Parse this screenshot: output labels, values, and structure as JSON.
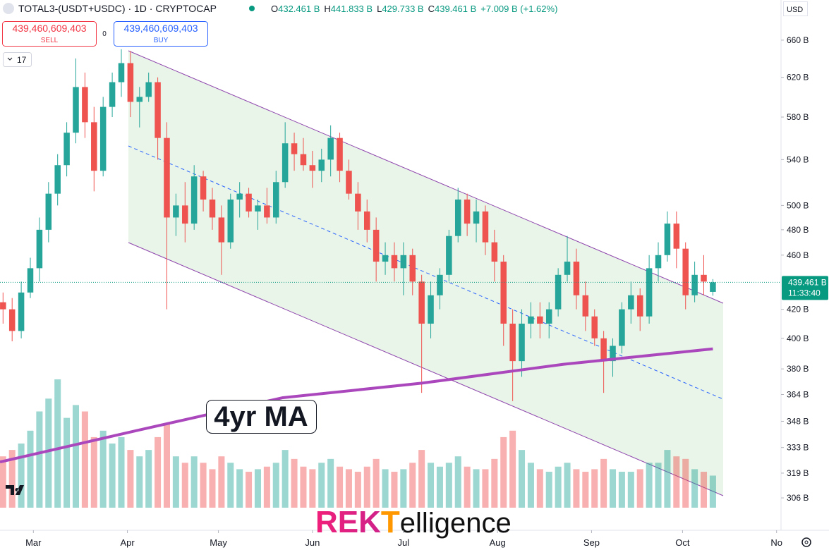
{
  "chart_data": {
    "type": "candlestick",
    "log": true,
    "x": [
      0,
      3,
      6,
      9,
      12,
      15,
      18,
      21,
      24,
      27,
      30,
      33,
      36,
      39,
      42,
      45,
      48,
      51,
      54,
      57,
      60,
      63,
      66,
      69,
      72,
      75,
      78,
      81,
      84,
      87,
      90,
      93,
      96,
      99,
      102,
      105,
      108,
      111,
      114,
      117,
      120,
      123,
      126,
      129,
      132,
      135,
      138,
      141,
      144,
      147,
      150,
      153,
      156,
      159,
      162,
      165,
      168,
      171,
      174,
      177,
      180,
      183,
      186,
      189,
      192,
      195,
      198,
      201,
      204,
      207,
      210,
      213,
      216,
      219,
      222,
      225,
      228,
      231,
      234
    ],
    "open": [
      425,
      420,
      405,
      432,
      450,
      480,
      510,
      535,
      565,
      610,
      575,
      530,
      590,
      615,
      635,
      595,
      600,
      615,
      560,
      490,
      500,
      485,
      525,
      505,
      490,
      470,
      505,
      510,
      495,
      500,
      490,
      520,
      555,
      545,
      535,
      530,
      540,
      560,
      530,
      510,
      495,
      480,
      455,
      460,
      450,
      460,
      440,
      410,
      430,
      445,
      475,
      505,
      485,
      495,
      470,
      455,
      410,
      385,
      410,
      415,
      410,
      420,
      445,
      455,
      430,
      415,
      400,
      385,
      395,
      420,
      430,
      415,
      450,
      460,
      485,
      465,
      430,
      445,
      432.461
    ],
    "high": [
      432,
      428,
      440,
      458,
      490,
      520,
      545,
      575,
      640,
      625,
      590,
      600,
      625,
      650,
      648,
      610,
      625,
      620,
      575,
      510,
      520,
      535,
      530,
      515,
      500,
      510,
      520,
      515,
      505,
      515,
      530,
      575,
      565,
      560,
      548,
      550,
      572,
      565,
      540,
      520,
      505,
      490,
      470,
      470,
      470,
      465,
      445,
      440,
      450,
      480,
      515,
      510,
      505,
      500,
      480,
      460,
      420,
      420,
      425,
      425,
      425,
      450,
      475,
      465,
      440,
      420,
      405,
      400,
      425,
      440,
      435,
      460,
      470,
      495,
      495,
      470,
      455,
      460,
      441.833
    ],
    "low": [
      410,
      398,
      400,
      428,
      440,
      470,
      500,
      525,
      555,
      560,
      512,
      525,
      580,
      600,
      580,
      570,
      595,
      540,
      420,
      475,
      470,
      480,
      495,
      480,
      445,
      465,
      490,
      490,
      480,
      485,
      485,
      515,
      530,
      530,
      515,
      520,
      525,
      520,
      505,
      480,
      470,
      440,
      445,
      440,
      430,
      430,
      365,
      400,
      420,
      440,
      470,
      475,
      470,
      460,
      440,
      395,
      360,
      375,
      400,
      400,
      400,
      415,
      440,
      420,
      405,
      395,
      365,
      375,
      390,
      410,
      405,
      410,
      440,
      455,
      450,
      420,
      425,
      430,
      429.733
    ],
    "close": [
      420,
      405,
      432,
      450,
      480,
      510,
      535,
      565,
      610,
      575,
      530,
      590,
      615,
      635,
      595,
      600,
      615,
      560,
      490,
      500,
      485,
      525,
      505,
      490,
      470,
      505,
      510,
      495,
      500,
      490,
      520,
      555,
      545,
      535,
      530,
      540,
      560,
      530,
      510,
      495,
      480,
      455,
      460,
      450,
      460,
      440,
      410,
      430,
      445,
      475,
      505,
      485,
      495,
      470,
      455,
      410,
      385,
      410,
      415,
      410,
      420,
      445,
      455,
      430,
      415,
      400,
      385,
      395,
      420,
      430,
      415,
      450,
      460,
      485,
      465,
      430,
      445,
      440,
      439.461
    ],
    "volume": [
      40,
      45,
      50,
      60,
      75,
      85,
      100,
      70,
      80,
      75,
      55,
      60,
      50,
      55,
      45,
      40,
      45,
      55,
      65,
      40,
      35,
      40,
      35,
      30,
      40,
      35,
      30,
      28,
      30,
      32,
      35,
      45,
      38,
      32,
      30,
      35,
      38,
      32,
      30,
      28,
      32,
      38,
      30,
      28,
      30,
      35,
      45,
      35,
      32,
      35,
      40,
      32,
      30,
      30,
      38,
      55,
      60,
      45,
      35,
      30,
      28,
      32,
      35,
      30,
      28,
      30,
      38,
      30,
      28,
      28,
      30,
      35,
      35,
      45,
      40,
      38,
      30,
      28,
      25
    ],
    "up_color": "#26a69a",
    "down_color": "#ef5350",
    "ma": {
      "name": "4yr MA",
      "color": "#ab47bc",
      "x": [
        -1,
        45,
        92,
        138,
        185,
        234
      ],
      "values": [
        325,
        343,
        362,
        371,
        383,
        393
      ]
    },
    "xlim": [
      -1,
      256
    ],
    "xticks": [
      {
        "value": 10,
        "label": "Mar"
      },
      {
        "value": 41,
        "label": "Apr"
      },
      {
        "value": 71,
        "label": "May"
      },
      {
        "value": 102,
        "label": "Jun"
      },
      {
        "value": 132,
        "label": "Jul"
      },
      {
        "value": 163,
        "label": "Aug"
      },
      {
        "value": 194,
        "label": "Sep"
      },
      {
        "value": 224,
        "label": "Oct"
      },
      {
        "value": 255,
        "label": "No"
      }
    ],
    "ylim": [
      301,
      706
    ],
    "yticks": [
      {
        "value": 306,
        "label": "306 B"
      },
      {
        "value": 319,
        "label": "319 B"
      },
      {
        "value": 333,
        "label": "333 B"
      },
      {
        "value": 348,
        "label": "348 B"
      },
      {
        "value": 364,
        "label": "364 B"
      },
      {
        "value": 380,
        "label": "380 B"
      },
      {
        "value": 400,
        "label": "400 B"
      },
      {
        "value": 420,
        "label": "420 B"
      },
      {
        "value": 460,
        "label": "460 B"
      },
      {
        "value": 480,
        "label": "480 B"
      },
      {
        "value": 500,
        "label": "500 B"
      },
      {
        "value": 540,
        "label": "540 B"
      },
      {
        "value": 580,
        "label": "580 B"
      },
      {
        "value": 620,
        "label": "620 B"
      },
      {
        "value": 660,
        "label": "660 B"
      }
    ]
  },
  "header": {
    "symbol": "TOTAL3-(USDT+USDC) · 1D · CRYPTOCAP",
    "stats": [
      {
        "key": "O",
        "value": "432.461 B"
      },
      {
        "key": "H",
        "value": "441.833 B"
      },
      {
        "key": "L",
        "value": "429.733 B"
      },
      {
        "key": "C",
        "value": "439.461 B"
      }
    ],
    "change": "+7.009 B (+1.62%)"
  },
  "trade": {
    "sell_price": "439,460,609,403",
    "sell": "SELL",
    "spread": "0",
    "buy_price": "439,460,609,403",
    "buy": "BUY"
  },
  "indicators": "17",
  "currency": "USD",
  "price_tag": {
    "price": "439.461 B",
    "countdown": "11:33:40"
  },
  "watermark": {
    "a": "REK",
    "b": "T",
    "c": "elligence"
  }
}
